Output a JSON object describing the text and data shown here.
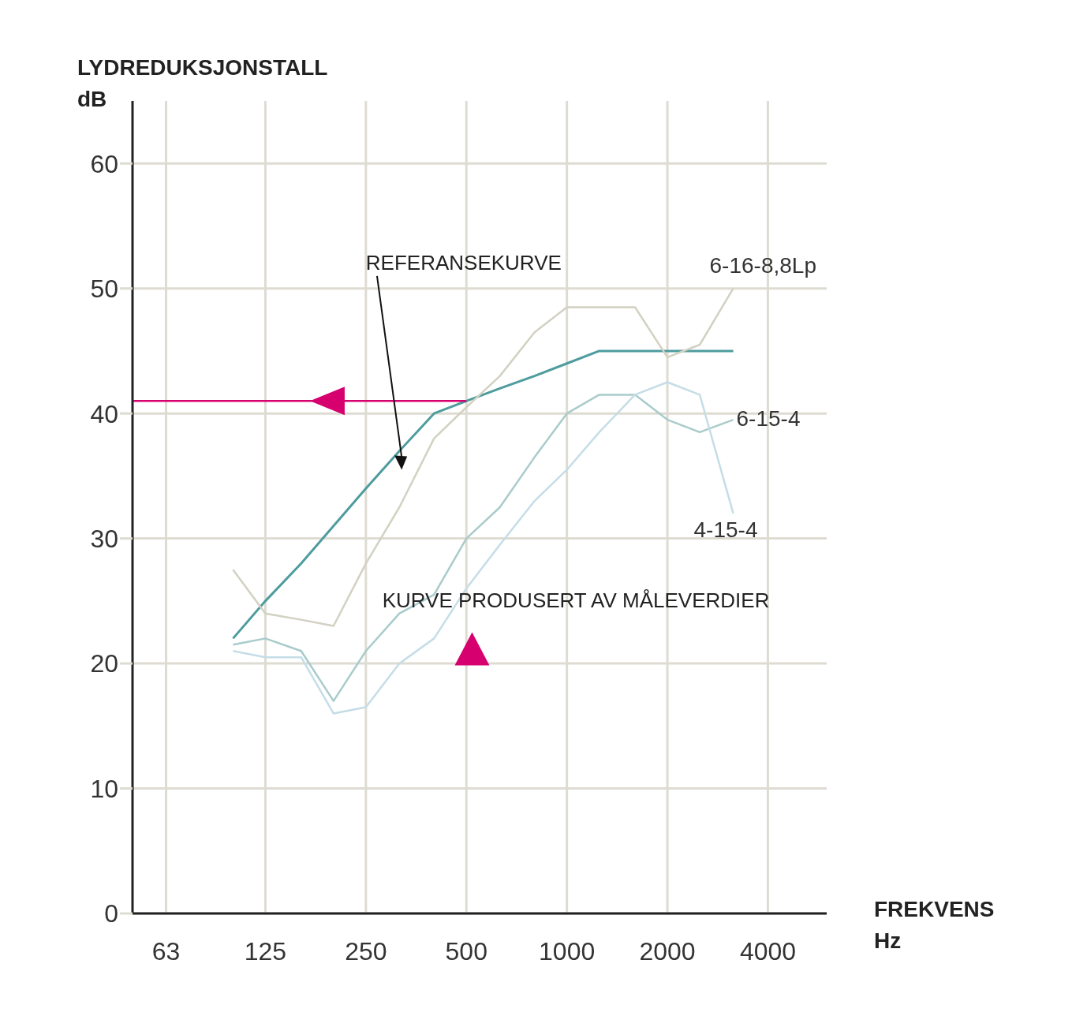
{
  "chart_data": {
    "type": "line",
    "xlabel": "FREKVENS\nHz",
    "ylabel": "LYDREDUKSJONSTALL\ndB",
    "log": "x",
    "xlim": [
      50,
      6000
    ],
    "xticks": [
      63,
      125,
      250,
      500,
      1000,
      2000,
      4000
    ],
    "ylim": [
      0,
      65
    ],
    "yticks": [
      0,
      10,
      20,
      30,
      40,
      50,
      60
    ],
    "grid": true,
    "legend": false,
    "marker": "none",
    "x": [
      100,
      125,
      160,
      200,
      250,
      315,
      400,
      500,
      630,
      800,
      1000,
      1250,
      1600,
      2000,
      2500,
      3150
    ],
    "series": [
      {
        "color": "#4e9c9e",
        "values": [
          22,
          25,
          28,
          31,
          34,
          37,
          40,
          41,
          42,
          43,
          44,
          45,
          45,
          45,
          45,
          45
        ]
      },
      {
        "name": "6-16-8,8Lp",
        "color": "#d3d1c2",
        "values": [
          27.5,
          24,
          23.5,
          23,
          28,
          32.5,
          38,
          40.5,
          43,
          46.5,
          48.5,
          48.5,
          48.5,
          44.5,
          45.5,
          50
        ]
      },
      {
        "name": "6-15-4",
        "color": "#a9cbcb",
        "values": [
          21.5,
          22,
          21,
          17,
          21,
          24,
          25.5,
          30,
          32.5,
          36.5,
          40,
          41.5,
          41.5,
          39.5,
          38.5,
          39.5
        ]
      },
      {
        "name": "4-15-4",
        "color": "#c5dde7",
        "values": [
          21,
          20.5,
          20.5,
          16,
          16.5,
          20,
          22,
          26,
          29.5,
          33,
          35.5,
          38.5,
          41.5,
          42.5,
          41.5,
          32
        ]
      },
      {
        "color": "#d6006f",
        "x": [
          50,
          500
        ],
        "values": [
          41,
          41
        ]
      }
    ],
    "annotations": [
      "REFERANSEKURVE",
      "KURVE PRODUSERT AV MÅLEVERDIER"
    ]
  }
}
